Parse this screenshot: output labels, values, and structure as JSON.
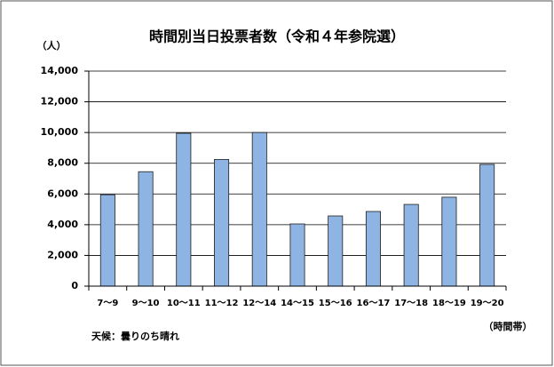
{
  "chart_data": {
    "type": "bar",
    "title": "時間別当日投票者数（令和４年参院選）",
    "y_label": "（人）",
    "x_label": "（時間帯）",
    "note": "天候：曇りのち晴れ",
    "categories": [
      "7〜9",
      "9〜10",
      "10〜11",
      "11〜12",
      "12〜14",
      "14〜15",
      "15〜16",
      "16〜17",
      "17〜18",
      "18〜19",
      "19〜20"
    ],
    "values": [
      5950,
      7450,
      9950,
      8250,
      10000,
      4050,
      4570,
      4860,
      5320,
      5790,
      7925
    ],
    "color": "#8db4e2",
    "ylim": [
      0,
      14000
    ],
    "yticks": [
      0,
      {
        "value": 2000,
        "label": "2,000"
      },
      {
        "value": 4000,
        "label": "4,000"
      },
      {
        "value": 6000,
        "label": "6,000"
      },
      {
        "value": 8000,
        "label": "8,000"
      },
      {
        "value": 10000,
        "label": "10,000"
      },
      {
        "value": 12000,
        "label": "12,000"
      },
      {
        "value": 14000,
        "label": "14,000"
      }
    ],
    "grid": true
  }
}
